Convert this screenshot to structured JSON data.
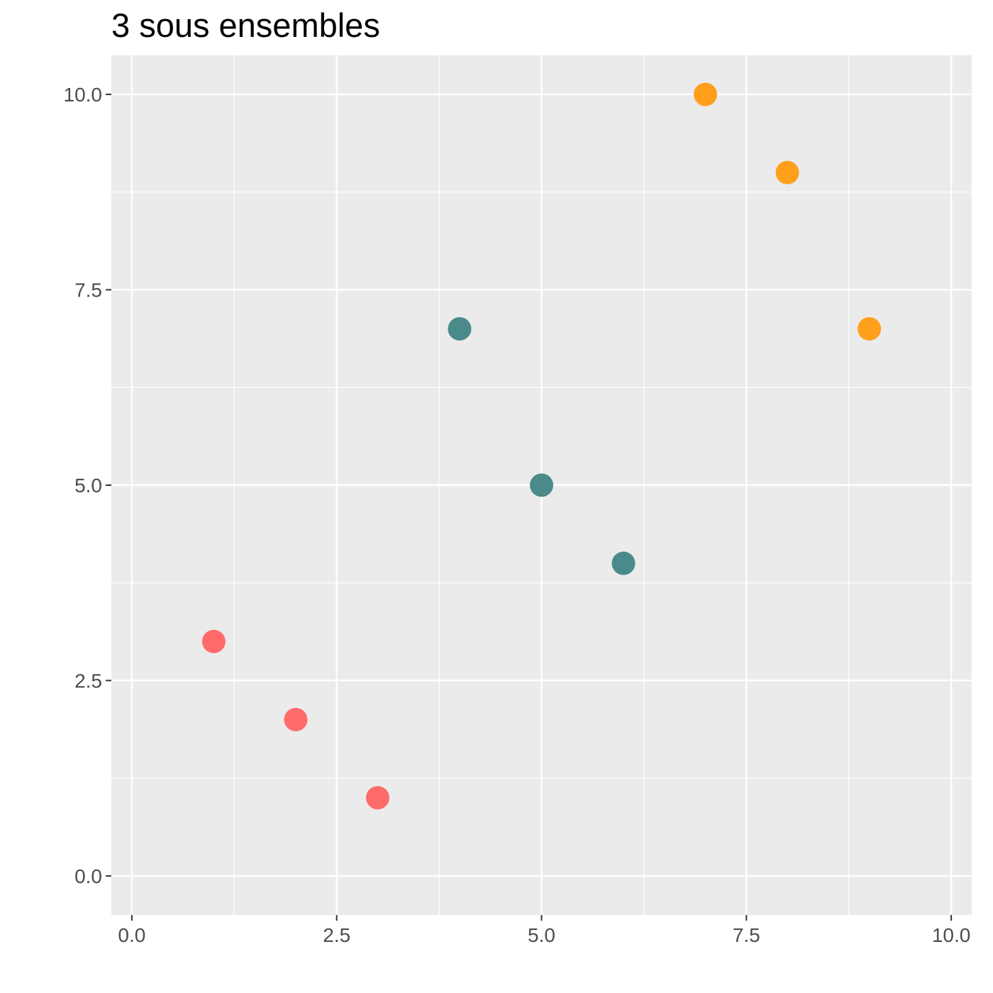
{
  "chart_data": {
    "type": "scatter",
    "title": "3 sous ensembles",
    "xlabel": "",
    "ylabel": "",
    "xlim": [
      -0.25,
      10.25
    ],
    "ylim": [
      -0.5,
      10.5
    ],
    "x_ticks": [
      0,
      2.5,
      5,
      7.5,
      10
    ],
    "x_tick_labels": [
      "0.0",
      "2.5",
      "5.0",
      "7.5",
      "10.0"
    ],
    "y_ticks": [
      0,
      2.5,
      5,
      7.5,
      10
    ],
    "y_tick_labels": [
      "0.0",
      "2.5",
      "5.0",
      "7.5",
      "10.0"
    ],
    "grid": true,
    "legend": "none",
    "series": [
      {
        "color": "#ff6b6b",
        "x": [
          1,
          2,
          3
        ],
        "y": [
          3,
          2,
          1
        ]
      },
      {
        "color": "#4a8a8a",
        "x": [
          4,
          5,
          6
        ],
        "y": [
          7,
          5,
          4
        ]
      },
      {
        "color": "#ff9f1c",
        "x": [
          7,
          8,
          9
        ],
        "y": [
          10,
          9,
          7
        ]
      }
    ]
  }
}
